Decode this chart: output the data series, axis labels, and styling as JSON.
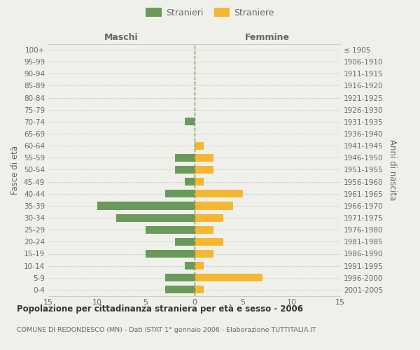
{
  "age_groups": [
    "100+",
    "95-99",
    "90-94",
    "85-89",
    "80-84",
    "75-79",
    "70-74",
    "65-69",
    "60-64",
    "55-59",
    "50-54",
    "45-49",
    "40-44",
    "35-39",
    "30-34",
    "25-29",
    "20-24",
    "15-19",
    "10-14",
    "5-9",
    "0-4"
  ],
  "birth_years": [
    "≤ 1905",
    "1906-1910",
    "1911-1915",
    "1916-1920",
    "1921-1925",
    "1926-1930",
    "1931-1935",
    "1936-1940",
    "1941-1945",
    "1946-1950",
    "1951-1955",
    "1956-1960",
    "1961-1965",
    "1966-1970",
    "1971-1975",
    "1976-1980",
    "1981-1985",
    "1986-1990",
    "1991-1995",
    "1996-2000",
    "2001-2005"
  ],
  "males": [
    0,
    0,
    0,
    0,
    0,
    0,
    1,
    0,
    0,
    2,
    2,
    1,
    3,
    10,
    8,
    5,
    2,
    5,
    1,
    3,
    3
  ],
  "females": [
    0,
    0,
    0,
    0,
    0,
    0,
    0,
    0,
    1,
    2,
    2,
    1,
    5,
    4,
    3,
    2,
    3,
    2,
    1,
    7,
    1
  ],
  "male_color": "#6a9a5a",
  "female_color": "#f5b731",
  "grid_color": "#cccccc",
  "background_color": "#f0f0eb",
  "text_color": "#666666",
  "title": "Popolazione per cittadinanza straniera per età e sesso - 2006",
  "subtitle": "COMUNE DI REDONDESCO (MN) - Dati ISTAT 1° gennaio 2006 - Elaborazione TUTTITALIA.IT",
  "xlabel_left": "Maschi",
  "xlabel_right": "Femmine",
  "ylabel_left": "Fasce di età",
  "ylabel_right": "Anni di nascita",
  "legend_male": "Stranieri",
  "legend_female": "Straniere",
  "xlim": 15
}
